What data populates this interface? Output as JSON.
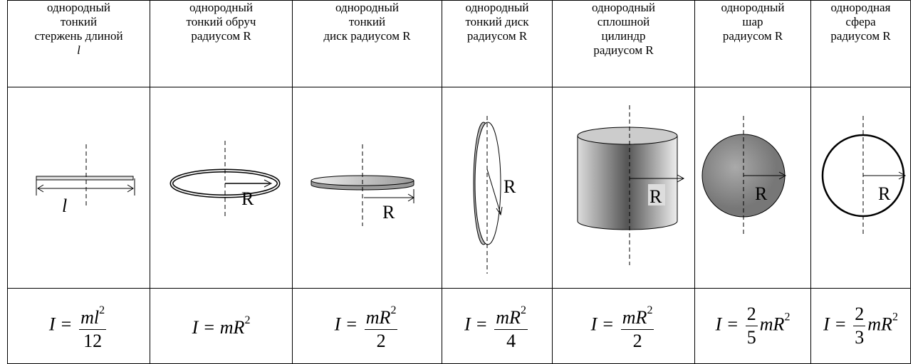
{
  "table": {
    "headers": [
      [
        "однородный",
        "тонкий",
        "стержень длиной",
        "l"
      ],
      [
        "однородный",
        "тонкий обруч",
        "радиусом R"
      ],
      [
        "однородный",
        "тонкий",
        "диск радиусом R"
      ],
      [
        "однородный",
        "тонкий диск",
        "радиусом R"
      ],
      [
        "однородный",
        "сплошной",
        "цилиндр",
        "радиусом R"
      ],
      [
        "однородный",
        "шар",
        "радиусом R"
      ],
      [
        "однородная",
        "сфера",
        "радиусом R"
      ]
    ],
    "diagrams": [
      {
        "label": "l"
      },
      {
        "label": "R"
      },
      {
        "label": "R"
      },
      {
        "label": "R"
      },
      {
        "label": "R"
      },
      {
        "label": "R"
      },
      {
        "label": "R"
      }
    ],
    "formulas": [
      {
        "lhs": "I =",
        "numerator": "ml",
        "numerator_power": "2",
        "denominator": "12"
      },
      {
        "lhs": "I =",
        "body": "mR",
        "power": "2"
      },
      {
        "lhs": "I =",
        "numerator": "mR",
        "numerator_power": "2",
        "denominator": "2"
      },
      {
        "lhs": "I =",
        "numerator": "mR",
        "numerator_power": "2",
        "denominator": "4"
      },
      {
        "lhs": "I =",
        "numerator": "mR",
        "numerator_power": "2",
        "denominator": "2"
      },
      {
        "lhs": "I =",
        "coef_numerator": "2",
        "coef_denominator": "5",
        "body": "mR",
        "power": "2"
      },
      {
        "lhs": "I =",
        "coef_numerator": "2",
        "coef_denominator": "3",
        "body": "mR",
        "power": "2"
      }
    ]
  }
}
